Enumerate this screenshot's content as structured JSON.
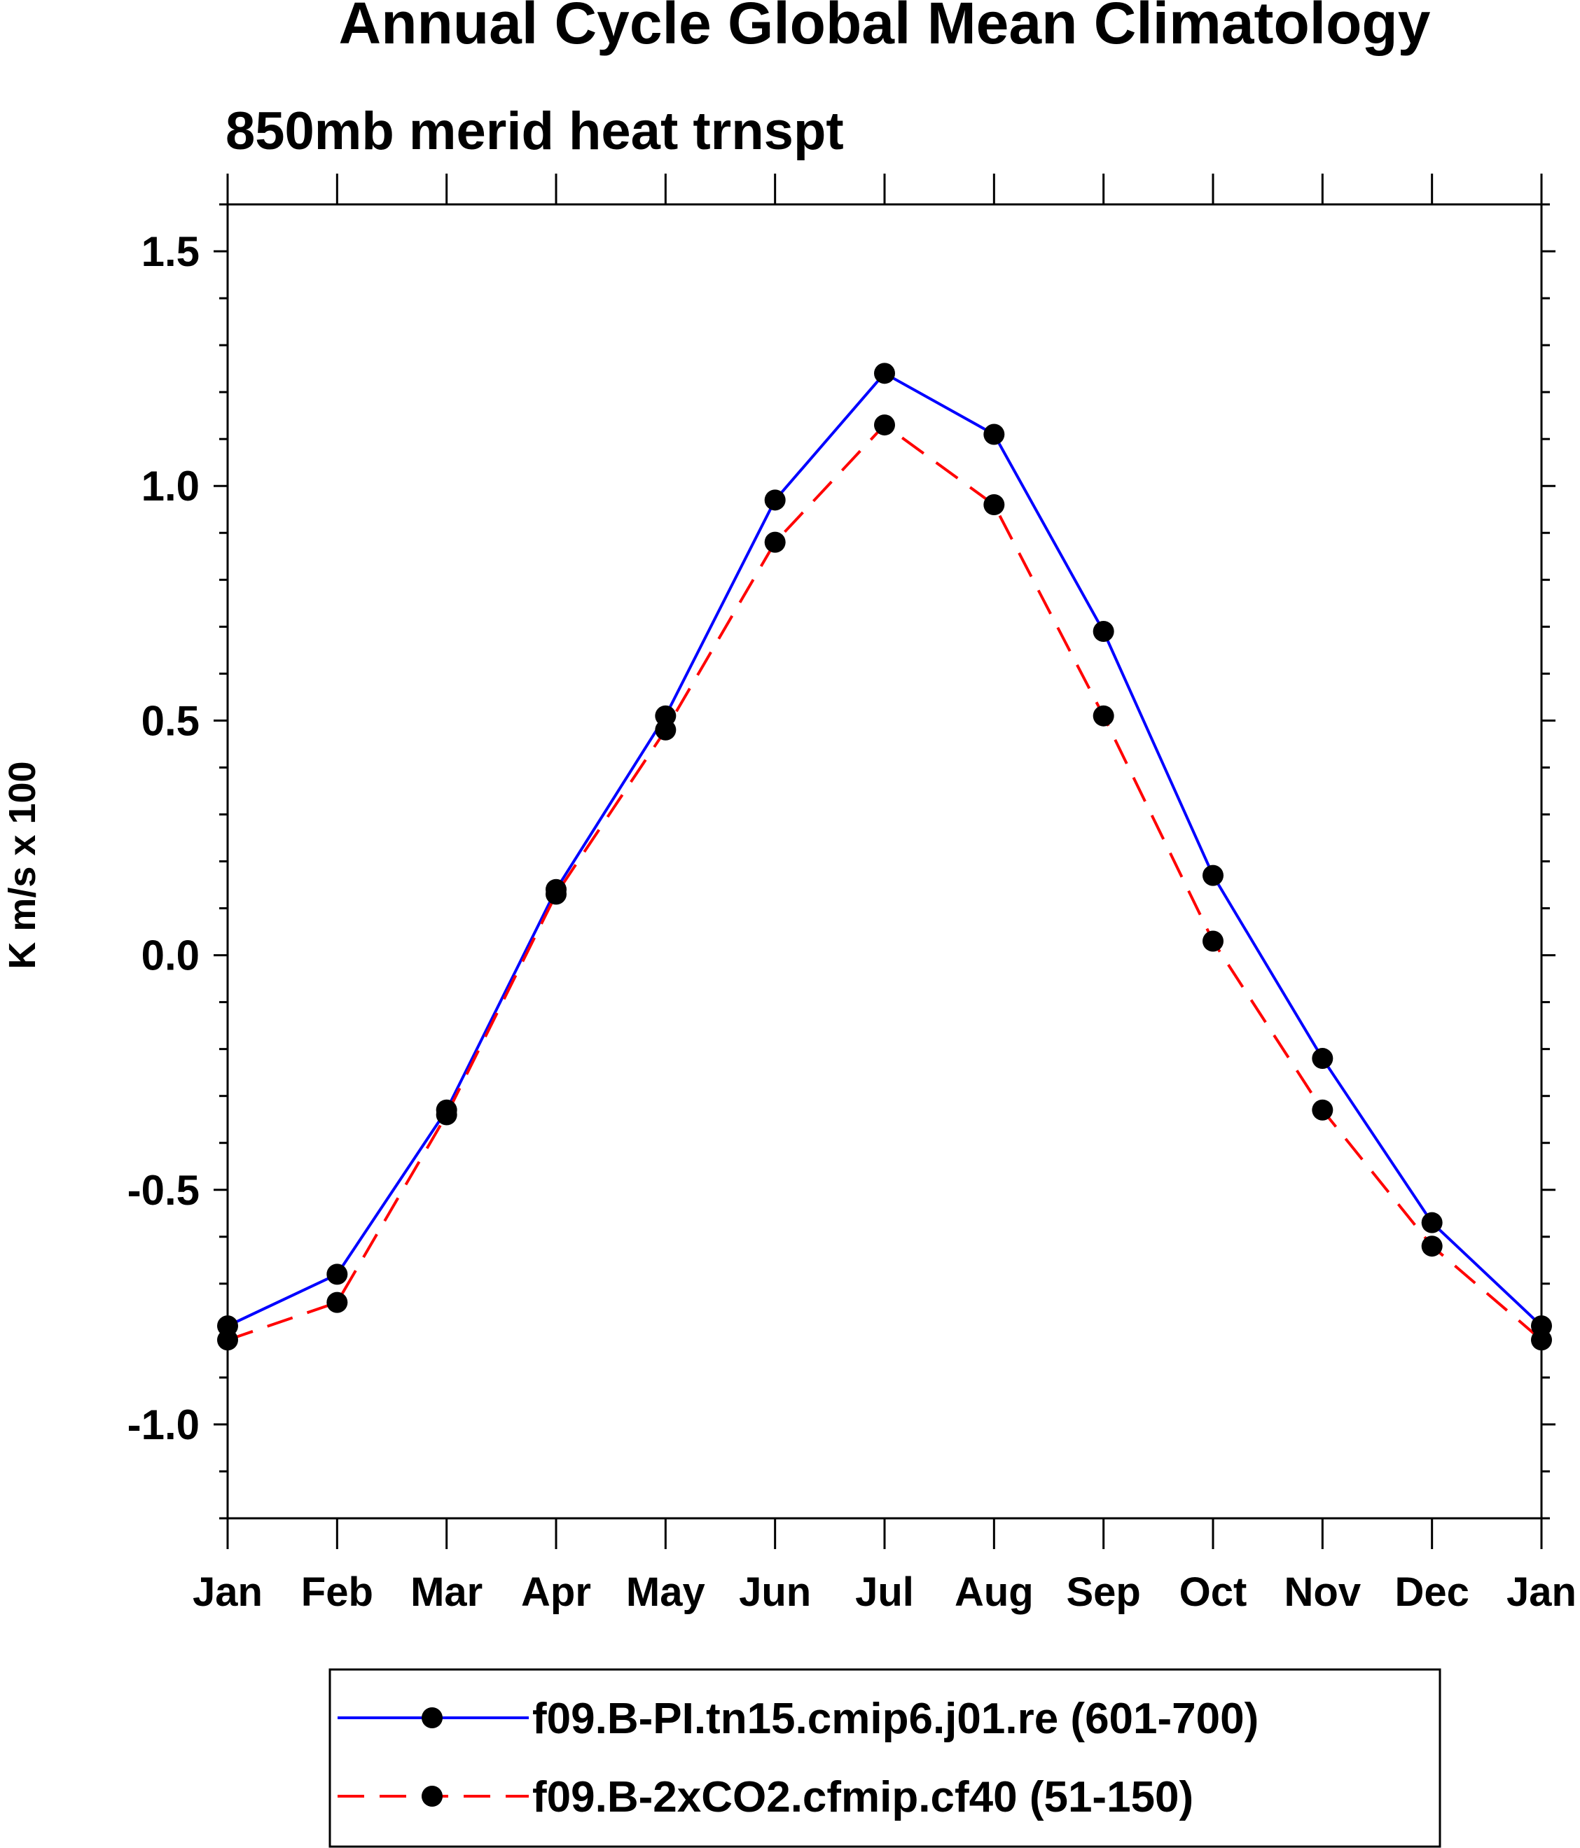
{
  "chart_data": {
    "type": "line",
    "title": "Annual Cycle Global Mean Climatology",
    "subtitle": "850mb merid heat trnspt",
    "xlabel": "",
    "ylabel": "K m/s x 100",
    "categories": [
      "Jan",
      "Feb",
      "Mar",
      "Apr",
      "May",
      "Jun",
      "Jul",
      "Aug",
      "Sep",
      "Oct",
      "Nov",
      "Dec",
      "Jan"
    ],
    "ylim": [
      -1.2,
      1.6
    ],
    "y_ticks": [
      -1.0,
      -0.5,
      0.0,
      0.5,
      1.0,
      1.5
    ],
    "y_tick_labels": [
      "-1.0",
      "-0.5",
      "0.0",
      "0.5",
      "1.0",
      "1.5"
    ],
    "grid": false,
    "legend_position": "bottom",
    "series": [
      {
        "name": "f09.B-PI.tn15.cmip6.j01.re (601-700)",
        "color": "#0000ff",
        "dash": "solid",
        "values": [
          -0.79,
          -0.68,
          -0.33,
          0.14,
          0.51,
          0.97,
          1.24,
          1.11,
          0.69,
          0.17,
          -0.22,
          -0.57,
          -0.79
        ]
      },
      {
        "name": "f09.B-2xCO2.cfmip.cf40 (51-150)",
        "color": "#ff0000",
        "dash": "dashed",
        "values": [
          -0.82,
          -0.74,
          -0.34,
          0.13,
          0.48,
          0.88,
          1.13,
          0.96,
          0.51,
          0.03,
          -0.33,
          -0.62,
          -0.82
        ]
      }
    ]
  }
}
